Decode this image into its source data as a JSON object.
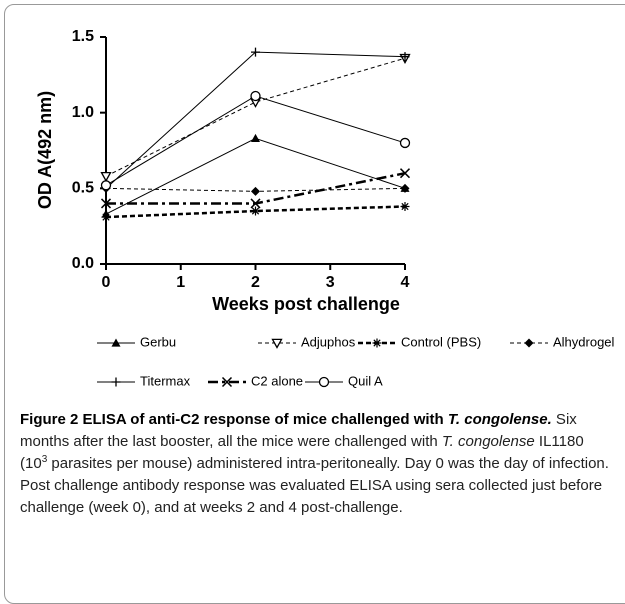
{
  "chart_data": {
    "type": "line",
    "x": [
      0,
      2,
      4
    ],
    "xlim": [
      0,
      4
    ],
    "xticks": [
      0,
      1,
      2,
      3,
      4
    ],
    "ylim": [
      0,
      1.5
    ],
    "yticks": [
      {
        "value": 0,
        "label": "0.0"
      },
      0.5,
      {
        "value": 1,
        "label": "1.0"
      },
      1.5
    ],
    "xlabel": "Weeks post challenge",
    "ylabel": "OD A(492 nm)",
    "grid": false,
    "series": [
      {
        "name": "Gerbu",
        "color": "#000000",
        "marker": "triangle",
        "line_style": "solid",
        "values": [
          0.33,
          0.83,
          0.5
        ]
      },
      {
        "name": "Adjuphos",
        "color": "#000000",
        "marker": "open-down-triangle",
        "line_style": "dashed",
        "values": [
          0.58,
          1.07,
          1.36
        ]
      },
      {
        "name": "Control (PBS)",
        "color": "#000000",
        "marker": "asterisk",
        "line_style": "bold-dashed",
        "values": [
          0.31,
          0.35,
          0.38
        ]
      },
      {
        "name": "Alhydrogel",
        "color": "#000000",
        "marker": "diamond",
        "line_style": "dashed",
        "values": [
          0.5,
          0.48,
          0.5
        ]
      },
      {
        "name": "Titermax",
        "color": "#000000",
        "marker": "plus",
        "line_style": "solid",
        "values": [
          0.5,
          1.4,
          1.37
        ]
      },
      {
        "name": "C2 alone",
        "color": "#000000",
        "marker": "cross",
        "line_style": "bold-dash-dot",
        "values": [
          0.4,
          0.4,
          0.6
        ]
      },
      {
        "name": "Quil A",
        "color": "#000000",
        "marker": "open-circle",
        "line_style": "solid",
        "values": [
          0.52,
          1.11,
          0.8
        ]
      }
    ]
  },
  "caption": {
    "runs": [
      "Figure 2 ELISA of anti-C2 response of mice challenged with ",
      "T. congolense.",
      " Six months after the last booster, all the mice were challenged with ",
      "T. congolense",
      " IL1180 (10",
      "3",
      " parasites per mouse) administered intra-peritoneally. Day 0 was the day of infection. Post challenge antibody response was evaluated ELISA using sera collected just before challenge (week 0), and at weeks 2 and 4 post-challenge."
    ]
  }
}
